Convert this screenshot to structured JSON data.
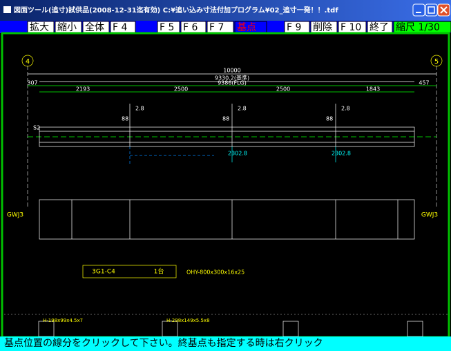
{
  "window": {
    "title": "図面ツール(追寸)試供品(2008-12-31迄有効) C:¥追い込み寸法付加プログラム¥02_追寸一発！！.tdf"
  },
  "toolbar": [
    "拡大",
    "縮小",
    "全体",
    "F 4",
    "F 5",
    "F 6",
    "F 7",
    "基点",
    "F 9",
    "削除",
    "F 10",
    "終了",
    "縮尺 1/30"
  ],
  "drawing": {
    "grid_labels": [
      "4",
      "5"
    ],
    "dimensions": [
      "10000",
      "9330.2(基準)",
      "9386(FLG)",
      "307",
      "2193",
      "2500",
      "2500",
      "1843",
      "457"
    ],
    "marks": [
      "2.8",
      "2.8",
      "2.8",
      "88",
      "88",
      "88",
      "S2",
      "2302.8",
      "2302.8"
    ],
    "piece_mark": "3G1-C4",
    "quantity": "1台",
    "section": "OHY-800x300x16x25",
    "joints": [
      "GWJ3",
      "GWJ3"
    ],
    "details": [
      "H-198x99x4.5x7",
      "H-298x149x5.5x8"
    ]
  },
  "status": "基点位置の線分をクリックして下さい。終基点も指定する時は右クリック"
}
